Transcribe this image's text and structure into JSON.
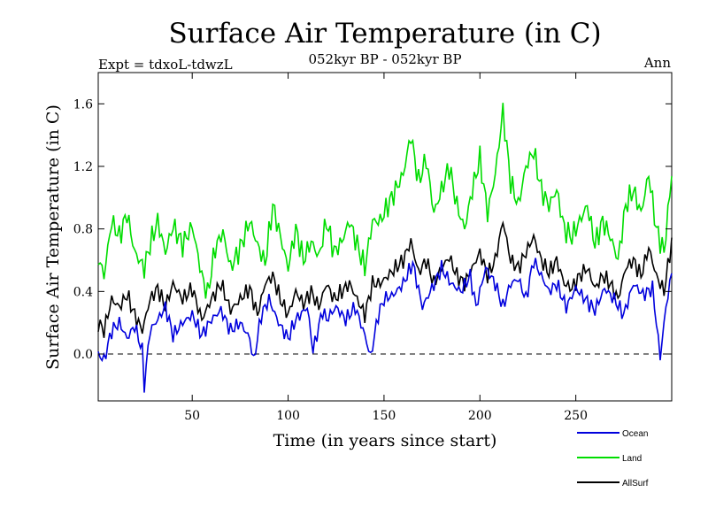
{
  "chart_data": {
    "type": "line",
    "title": "Surface Air Temperature (in C)",
    "subtitle_left": "Expt = tdxoL-tdwzL",
    "subtitle_center": "052kyr BP - 052kyr BP",
    "subtitle_right": "Ann",
    "xlabel": "Time (in years since start)",
    "ylabel": "Surface Air Temperature (in C)",
    "xlim": [
      1,
      300
    ],
    "ylim": [
      -0.3,
      1.8
    ],
    "xticks": [
      50,
      100,
      150,
      200,
      250
    ],
    "yticks": [
      0.0,
      0.4,
      0.8,
      1.2,
      1.6
    ],
    "ytick_labels": [
      "0.0",
      "0.4",
      "0.8",
      "1.2",
      "1.6"
    ],
    "zero_line": "dashed",
    "grid": false,
    "legend_position": "bottom-right",
    "series": [
      {
        "name": "Ocean",
        "color": "#0000dd",
        "anchors": [
          [
            1,
            0.0
          ],
          [
            4,
            -0.04
          ],
          [
            8,
            0.15
          ],
          [
            12,
            0.2
          ],
          [
            16,
            0.1
          ],
          [
            20,
            0.18
          ],
          [
            24,
            0.02
          ],
          [
            25,
            -0.2
          ],
          [
            28,
            0.15
          ],
          [
            32,
            0.22
          ],
          [
            36,
            0.3
          ],
          [
            40,
            0.12
          ],
          [
            45,
            0.2
          ],
          [
            50,
            0.25
          ],
          [
            55,
            0.12
          ],
          [
            60,
            0.22
          ],
          [
            65,
            0.28
          ],
          [
            70,
            0.15
          ],
          [
            75,
            0.2
          ],
          [
            80,
            0.1
          ],
          [
            82,
            -0.05
          ],
          [
            86,
            0.25
          ],
          [
            90,
            0.35
          ],
          [
            95,
            0.2
          ],
          [
            100,
            0.1
          ],
          [
            104,
            0.22
          ],
          [
            110,
            0.3
          ],
          [
            113,
            0.02
          ],
          [
            118,
            0.28
          ],
          [
            120,
            0.22
          ],
          [
            125,
            0.3
          ],
          [
            130,
            0.22
          ],
          [
            135,
            0.3
          ],
          [
            140,
            0.12
          ],
          [
            143,
            -0.02
          ],
          [
            147,
            0.25
          ],
          [
            150,
            0.35
          ],
          [
            155,
            0.38
          ],
          [
            160,
            0.45
          ],
          [
            165,
            0.58
          ],
          [
            170,
            0.3
          ],
          [
            175,
            0.42
          ],
          [
            180,
            0.55
          ],
          [
            185,
            0.45
          ],
          [
            190,
            0.4
          ],
          [
            195,
            0.5
          ],
          [
            198,
            0.3
          ],
          [
            203,
            0.55
          ],
          [
            208,
            0.45
          ],
          [
            212,
            0.3
          ],
          [
            216,
            0.45
          ],
          [
            220,
            0.48
          ],
          [
            224,
            0.35
          ],
          [
            228,
            0.6
          ],
          [
            232,
            0.5
          ],
          [
            236,
            0.4
          ],
          [
            240,
            0.45
          ],
          [
            245,
            0.3
          ],
          [
            250,
            0.42
          ],
          [
            255,
            0.35
          ],
          [
            260,
            0.28
          ],
          [
            265,
            0.42
          ],
          [
            270,
            0.35
          ],
          [
            275,
            0.25
          ],
          [
            280,
            0.45
          ],
          [
            285,
            0.38
          ],
          [
            290,
            0.42
          ],
          [
            294,
            -0.02
          ],
          [
            297,
            0.3
          ],
          [
            300,
            0.52
          ]
        ]
      },
      {
        "name": "Land",
        "color": "#00dd00",
        "anchors": [
          [
            1,
            0.62
          ],
          [
            4,
            0.5
          ],
          [
            8,
            0.85
          ],
          [
            12,
            0.75
          ],
          [
            16,
            0.9
          ],
          [
            20,
            0.65
          ],
          [
            25,
            0.55
          ],
          [
            28,
            0.7
          ],
          [
            32,
            0.85
          ],
          [
            36,
            0.65
          ],
          [
            40,
            0.82
          ],
          [
            45,
            0.7
          ],
          [
            50,
            0.82
          ],
          [
            55,
            0.5
          ],
          [
            58,
            0.38
          ],
          [
            62,
            0.68
          ],
          [
            66,
            0.78
          ],
          [
            70,
            0.55
          ],
          [
            75,
            0.68
          ],
          [
            80,
            0.85
          ],
          [
            84,
            0.7
          ],
          [
            88,
            0.58
          ],
          [
            92,
            0.95
          ],
          [
            96,
            0.75
          ],
          [
            100,
            0.55
          ],
          [
            104,
            0.8
          ],
          [
            108,
            0.6
          ],
          [
            112,
            0.72
          ],
          [
            116,
            0.62
          ],
          [
            120,
            0.85
          ],
          [
            124,
            0.65
          ],
          [
            128,
            0.72
          ],
          [
            132,
            0.85
          ],
          [
            136,
            0.7
          ],
          [
            140,
            0.55
          ],
          [
            144,
            0.85
          ],
          [
            148,
            0.85
          ],
          [
            152,
            0.95
          ],
          [
            156,
            1.05
          ],
          [
            160,
            1.15
          ],
          [
            164,
            1.4
          ],
          [
            168,
            1.1
          ],
          [
            172,
            1.25
          ],
          [
            176,
            0.9
          ],
          [
            180,
            1.05
          ],
          [
            184,
            1.2
          ],
          [
            188,
            0.95
          ],
          [
            192,
            0.8
          ],
          [
            196,
            1.05
          ],
          [
            200,
            1.25
          ],
          [
            204,
            0.9
          ],
          [
            208,
            1.15
          ],
          [
            212,
            1.55
          ],
          [
            216,
            1.1
          ],
          [
            220,
            0.95
          ],
          [
            224,
            1.2
          ],
          [
            228,
            1.3
          ],
          [
            232,
            1.05
          ],
          [
            236,
            0.95
          ],
          [
            240,
            1.05
          ],
          [
            244,
            0.8
          ],
          [
            248,
            0.75
          ],
          [
            252,
            0.85
          ],
          [
            256,
            0.95
          ],
          [
            260,
            0.7
          ],
          [
            264,
            0.85
          ],
          [
            268,
            0.75
          ],
          [
            272,
            0.6
          ],
          [
            276,
            0.95
          ],
          [
            280,
            1.05
          ],
          [
            284,
            0.9
          ],
          [
            288,
            1.15
          ],
          [
            292,
            0.8
          ],
          [
            296,
            0.65
          ],
          [
            300,
            1.15
          ]
        ]
      },
      {
        "name": "AllSurf",
        "color": "#000000",
        "anchors": [
          [
            1,
            0.2
          ],
          [
            4,
            0.15
          ],
          [
            8,
            0.35
          ],
          [
            12,
            0.3
          ],
          [
            16,
            0.38
          ],
          [
            20,
            0.25
          ],
          [
            24,
            0.15
          ],
          [
            28,
            0.35
          ],
          [
            32,
            0.42
          ],
          [
            36,
            0.3
          ],
          [
            40,
            0.45
          ],
          [
            45,
            0.35
          ],
          [
            50,
            0.42
          ],
          [
            55,
            0.22
          ],
          [
            60,
            0.35
          ],
          [
            65,
            0.45
          ],
          [
            70,
            0.28
          ],
          [
            75,
            0.35
          ],
          [
            80,
            0.42
          ],
          [
            84,
            0.25
          ],
          [
            88,
            0.45
          ],
          [
            92,
            0.5
          ],
          [
            96,
            0.35
          ],
          [
            100,
            0.25
          ],
          [
            104,
            0.4
          ],
          [
            108,
            0.32
          ],
          [
            112,
            0.4
          ],
          [
            116,
            0.3
          ],
          [
            120,
            0.45
          ],
          [
            124,
            0.35
          ],
          [
            128,
            0.4
          ],
          [
            132,
            0.45
          ],
          [
            136,
            0.35
          ],
          [
            140,
            0.25
          ],
          [
            144,
            0.45
          ],
          [
            148,
            0.45
          ],
          [
            152,
            0.5
          ],
          [
            156,
            0.55
          ],
          [
            160,
            0.6
          ],
          [
            164,
            0.72
          ],
          [
            168,
            0.52
          ],
          [
            172,
            0.6
          ],
          [
            176,
            0.45
          ],
          [
            180,
            0.55
          ],
          [
            184,
            0.62
          ],
          [
            188,
            0.5
          ],
          [
            192,
            0.45
          ],
          [
            196,
            0.55
          ],
          [
            200,
            0.65
          ],
          [
            204,
            0.5
          ],
          [
            208,
            0.6
          ],
          [
            212,
            0.85
          ],
          [
            216,
            0.6
          ],
          [
            220,
            0.55
          ],
          [
            224,
            0.65
          ],
          [
            228,
            0.75
          ],
          [
            232,
            0.6
          ],
          [
            236,
            0.52
          ],
          [
            240,
            0.6
          ],
          [
            244,
            0.45
          ],
          [
            248,
            0.42
          ],
          [
            252,
            0.5
          ],
          [
            256,
            0.55
          ],
          [
            260,
            0.42
          ],
          [
            264,
            0.5
          ],
          [
            268,
            0.45
          ],
          [
            272,
            0.35
          ],
          [
            276,
            0.55
          ],
          [
            280,
            0.6
          ],
          [
            284,
            0.5
          ],
          [
            288,
            0.68
          ],
          [
            292,
            0.5
          ],
          [
            296,
            0.4
          ],
          [
            300,
            0.72
          ]
        ]
      }
    ]
  }
}
